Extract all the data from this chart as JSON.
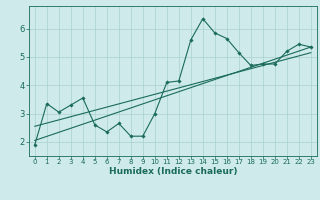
{
  "xlabel": "Humidex (Indice chaleur)",
  "background_color": "#ceeaea",
  "grid_color": "#aacfcf",
  "line_color": "#1a6b5a",
  "xlim": [
    -0.5,
    23.5
  ],
  "ylim": [
    1.5,
    6.8
  ],
  "yticks": [
    2,
    3,
    4,
    5,
    6
  ],
  "xticks": [
    0,
    1,
    2,
    3,
    4,
    5,
    6,
    7,
    8,
    9,
    10,
    11,
    12,
    13,
    14,
    15,
    16,
    17,
    18,
    19,
    20,
    21,
    22,
    23
  ],
  "data_x": [
    0,
    1,
    2,
    3,
    4,
    5,
    6,
    7,
    8,
    9,
    10,
    11,
    12,
    13,
    14,
    15,
    16,
    17,
    18,
    19,
    20,
    21,
    22,
    23
  ],
  "data_y": [
    1.9,
    3.35,
    3.05,
    3.3,
    3.55,
    2.6,
    2.35,
    2.65,
    2.2,
    2.2,
    3.0,
    4.1,
    4.15,
    5.6,
    6.35,
    5.85,
    5.65,
    5.15,
    4.7,
    4.75,
    4.75,
    5.2,
    5.45,
    5.35
  ],
  "trend_line1_x": [
    0,
    23
  ],
  "trend_line1_y": [
    2.05,
    5.35
  ],
  "trend_line2_x": [
    0,
    23
  ],
  "trend_line2_y": [
    2.55,
    5.15
  ]
}
